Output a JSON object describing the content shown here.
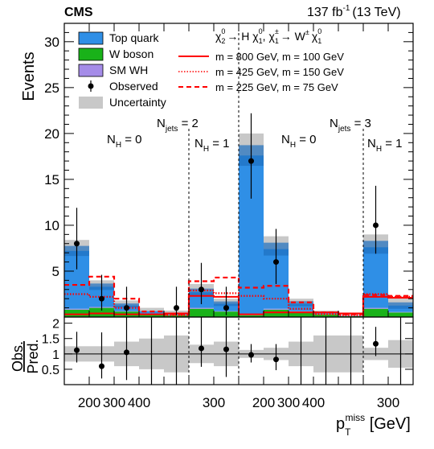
{
  "header": {
    "experiment": "CMS",
    "lumi_label": "137 fb",
    "lumi_exp": "-1",
    "energy": "(13 TeV)"
  },
  "axes": {
    "ylabel_top": "Events",
    "ylabel_ratio_num": "Obs.",
    "ylabel_ratio_den": "Pred.",
    "xlabel_main": "p",
    "xlabel_sub": "T",
    "xlabel_sup": "miss",
    "xlabel_unit": " [GeV]"
  },
  "legend": {
    "signal_title_1": "χ",
    "signal_title_2": "→ H χ",
    "signal_title_3": ",  χ",
    "signal_title_4": "→ W",
    "signal_title_5": "χ",
    "items": [
      {
        "label": "Top quark",
        "color": "#2f8fe6"
      },
      {
        "label": "W boson",
        "color": "#19b219"
      },
      {
        "label": "SM WH",
        "color": "#a58ce8"
      },
      {
        "label": "Observed",
        "color": "#000000"
      },
      {
        "label": "Uncertainty",
        "color": "#c8c8c8"
      }
    ],
    "signals": [
      {
        "label": "m = 800 GeV, m = 100 GeV",
        "style": "solid"
      },
      {
        "label": "m = 425 GeV, m = 150 GeV",
        "style": "dotted"
      },
      {
        "label": "m = 225 GeV, m = 75 GeV",
        "style": "dashed"
      }
    ]
  },
  "regions": {
    "njets2": "N",
    "njets2_sub": "jets",
    "njets2_val": " = 2",
    "njets3": "N",
    "njets3_sub": "jets",
    "njets3_val": " = 3",
    "nh0a": "N",
    "nh0a_sub": "H",
    "nh0a_val": " = 0",
    "nh1a": "N",
    "nh1a_sub": "H",
    "nh1a_val": " = 1",
    "nh0b": "N",
    "nh0b_sub": "H",
    "nh0b_val": " = 0",
    "nh1b": "N",
    "nh1b_sub": "H",
    "nh1b_val": " = 1"
  },
  "x_tick_labels": [
    "200",
    "300",
    "400",
    "300",
    "200",
    "300",
    "400",
    "300"
  ],
  "colors": {
    "top": "#2f8fe6",
    "top_dark": "#1e6fbf",
    "w": "#19b219",
    "wh": "#a58ce8",
    "unc": "#c8c8c8",
    "signal": "#ff0000"
  },
  "chart_data": [
    {
      "type": "bar",
      "stacked": true,
      "ylim": [
        0,
        32
      ],
      "yticks": [
        5,
        10,
        15,
        20,
        25,
        30
      ],
      "bins": 14,
      "series": [
        {
          "name": "W boson",
          "values": [
            0.8,
            1.0,
            0.6,
            0.3,
            0.2,
            0.9,
            0.6,
            0.2,
            0.8,
            0.6,
            0.3,
            0.1,
            0.9,
            0.5
          ]
        },
        {
          "name": "SM WH",
          "values": [
            0.1,
            0.1,
            0.05,
            0.05,
            0.05,
            0.1,
            0.05,
            0.1,
            0.1,
            0.05,
            0.05,
            0.05,
            0.1,
            0.05
          ]
        },
        {
          "name": "Top quark",
          "values": [
            6.3,
            2.2,
            0.6,
            0.3,
            0.2,
            1.7,
            0.8,
            17.3,
            6.5,
            0.8,
            0.2,
            0.0,
            6.6,
            0.7
          ]
        }
      ],
      "uncertainty_band": [
        [
          6.2,
          8.4
        ],
        [
          2.6,
          4.0
        ],
        [
          0.9,
          1.8
        ],
        [
          0.4,
          1.0
        ],
        [
          0.2,
          0.7
        ],
        [
          2.0,
          3.6
        ],
        [
          1.0,
          2.0
        ],
        [
          15.5,
          20.0
        ],
        [
          6.0,
          8.8
        ],
        [
          0.9,
          2.0
        ],
        [
          0.2,
          0.7
        ],
        [
          0.0,
          0.3
        ],
        [
          6.2,
          9.0
        ],
        [
          0.8,
          2.2
        ]
      ],
      "observed": [
        {
          "bin": 0,
          "value": 8,
          "err_lo": 2.8,
          "err_hi": 3.9
        },
        {
          "bin": 1,
          "value": 2,
          "err_lo": 1.3,
          "err_hi": 2.6
        },
        {
          "bin": 2,
          "value": 1,
          "err_lo": 0.8,
          "err_hi": 2.3
        },
        {
          "bin": 4,
          "value": 1,
          "err_lo": 0.8,
          "err_hi": 2.3
        },
        {
          "bin": 5,
          "value": 3,
          "err_lo": 1.6,
          "err_hi": 2.9
        },
        {
          "bin": 6,
          "value": 1,
          "err_lo": 0.8,
          "err_hi": 2.3
        },
        {
          "bin": 7,
          "value": 17,
          "err_lo": 4.1,
          "err_hi": 5.2
        },
        {
          "bin": 8,
          "value": 6,
          "err_lo": 2.4,
          "err_hi": 3.6
        },
        {
          "bin": 12,
          "value": 10,
          "err_lo": 3.1,
          "err_hi": 4.3
        }
      ],
      "signals": [
        {
          "name": "m = 800 GeV, m = 100 GeV",
          "style": "solid",
          "values": [
            0.3,
            0.4,
            0.3,
            0.3,
            0.4,
            2.3,
            2.2,
            0.3,
            0.5,
            0.5,
            0.5,
            0.4,
            2.2,
            2.1
          ]
        },
        {
          "name": "m = 425 GeV, m = 150 GeV",
          "style": "dotted",
          "values": [
            2.5,
            2.2,
            1.0,
            0.3,
            0.2,
            2.9,
            2.6,
            2.3,
            2.0,
            0.9,
            0.3,
            0.2,
            2.5,
            2.2
          ]
        },
        {
          "name": "m = 225 GeV, m = 75 GeV",
          "style": "dashed",
          "values": [
            3.5,
            4.4,
            2.0,
            0.6,
            0.3,
            3.9,
            4.3,
            3.2,
            3.4,
            1.6,
            0.5,
            0.3,
            2.4,
            2.3
          ]
        }
      ]
    },
    {
      "type": "scatter",
      "ylim": [
        0,
        2.2
      ],
      "yticks": [
        0.5,
        1,
        1.5,
        2
      ],
      "ylabel": "Obs./Pred.",
      "ratio": [
        1.12,
        0.6,
        1.05,
        null,
        null,
        1.18,
        1.15,
        0.97,
        0.82,
        null,
        null,
        null,
        1.33,
        null
      ],
      "ratio_err_lo": [
        0.4,
        0.4,
        0.9,
        null,
        null,
        0.6,
        0.9,
        0.25,
        0.35,
        null,
        null,
        null,
        0.4,
        null
      ],
      "ratio_err_hi": [
        0.6,
        1.1,
        1.9,
        null,
        null,
        1.2,
        2.0,
        0.35,
        0.5,
        null,
        null,
        null,
        0.55,
        null
      ],
      "ratio_arrows": [
        false,
        false,
        true,
        true,
        true,
        false,
        true,
        false,
        false,
        true,
        true,
        true,
        false,
        true
      ],
      "ratio_band": [
        [
          0.75,
          1.25
        ],
        [
          0.75,
          1.25
        ],
        [
          0.6,
          1.4
        ],
        [
          0.5,
          1.5
        ],
        [
          0.4,
          1.6
        ],
        [
          0.7,
          1.3
        ],
        [
          0.6,
          1.4
        ],
        [
          0.87,
          1.13
        ],
        [
          0.8,
          1.2
        ],
        [
          0.6,
          1.4
        ],
        [
          0.4,
          1.6
        ],
        [
          0.4,
          1.6
        ],
        [
          0.8,
          1.2
        ],
        [
          0.55,
          1.45
        ]
      ]
    }
  ]
}
